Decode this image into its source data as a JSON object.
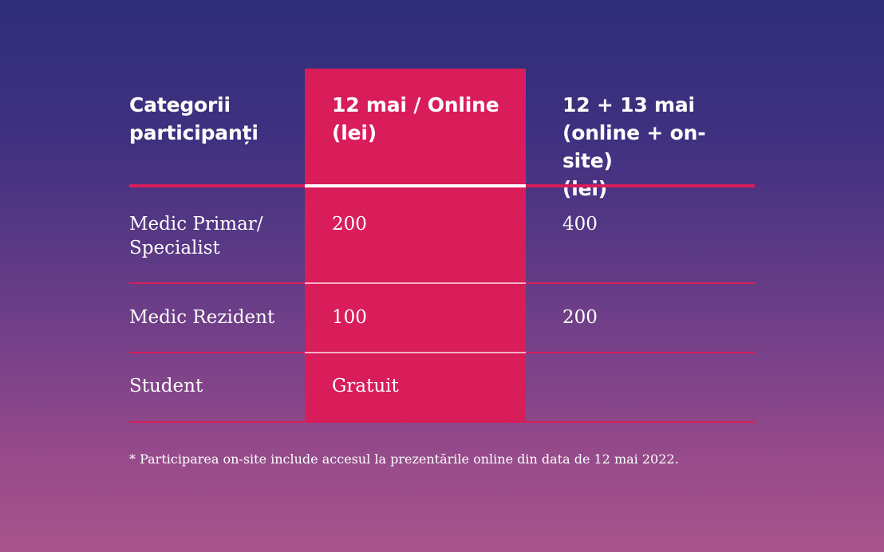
{
  "colors": {
    "background_top": "#2f2d78",
    "background_bottom": "#a9548b",
    "accent": "#d81d5a",
    "text": "#ffffff"
  },
  "table": {
    "headers": [
      "Categorii\nparticipanți",
      "12 mai / Online\n(lei)",
      "12 + 13 mai\n(online + on-site)\n(lei)"
    ],
    "rows": [
      {
        "category": "Medic Primar/\nSpecialist",
        "online": "200",
        "onsite": "400"
      },
      {
        "category": "Medic Rezident",
        "online": "100",
        "onsite": "200"
      },
      {
        "category": "Student",
        "online": "Gratuit",
        "onsite": ""
      }
    ]
  },
  "footnote": "* Participarea on-site include accesul la prezentările online din data de 12 mai 2022."
}
